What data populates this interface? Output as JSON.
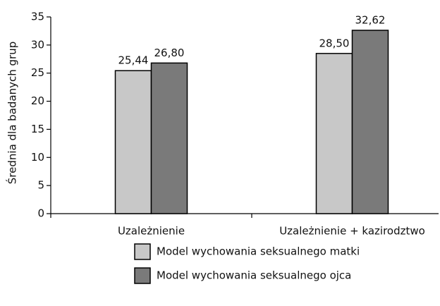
{
  "chart_data": {
    "type": "bar",
    "categories": [
      "Uzależnienie",
      "Uzależnienie + kazirodztwo"
    ],
    "series": [
      {
        "name": "Model wychowania seksualnego matki",
        "color": "#c8c8c8",
        "values": [
          25.44,
          28.5
        ],
        "value_labels": [
          "25,44",
          "28,50"
        ]
      },
      {
        "name": "Model wychowania seksualnego ojca",
        "color": "#7a7a7a",
        "values": [
          26.8,
          32.62
        ],
        "value_labels": [
          "26,80",
          "32,62"
        ]
      }
    ],
    "y_label": "Średnia dla badanych grup",
    "ylim": [
      0,
      35
    ],
    "yticks": [
      0,
      5,
      10,
      15,
      20,
      25,
      30,
      35
    ],
    "grid": false
  }
}
